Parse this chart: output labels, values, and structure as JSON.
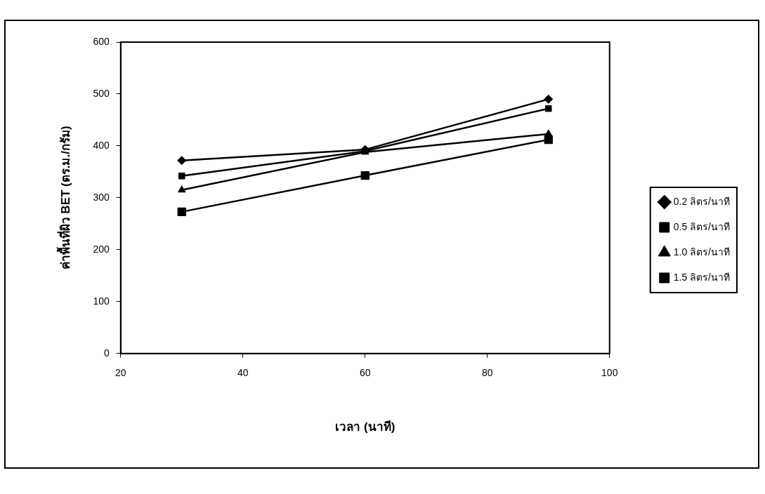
{
  "chart_data": {
    "type": "line",
    "xlabel": "เวลา (นาที)",
    "ylabel": "ค่าพื้นที่ผิว BET (ตร.ม./กรัม)",
    "x": [
      30,
      60,
      90
    ],
    "xlim": [
      20,
      100
    ],
    "xticks": [
      20,
      40,
      60,
      80,
      100
    ],
    "ylim": [
      0,
      600
    ],
    "yticks": [
      0,
      100,
      200,
      300,
      400,
      500,
      600
    ],
    "grid": false,
    "legend": "right",
    "line_style": "solid",
    "series": [
      {
        "name": "0.2 ลิตร/นาที",
        "color": "#000000",
        "marker": "diamond",
        "values": [
          372,
          393,
          490
        ]
      },
      {
        "name": "0.5 ลิตร/นาที",
        "color": "#000000",
        "marker": "square",
        "values": [
          342,
          390,
          472
        ]
      },
      {
        "name": "1.0 ลิตร/นาที",
        "color": "#000000",
        "marker": "triangle",
        "values": [
          315,
          388,
          423
        ]
      },
      {
        "name": "1.5 ลิตร/นาที",
        "color": "#000000",
        "marker": "square",
        "values": [
          273,
          343,
          412
        ]
      }
    ]
  }
}
